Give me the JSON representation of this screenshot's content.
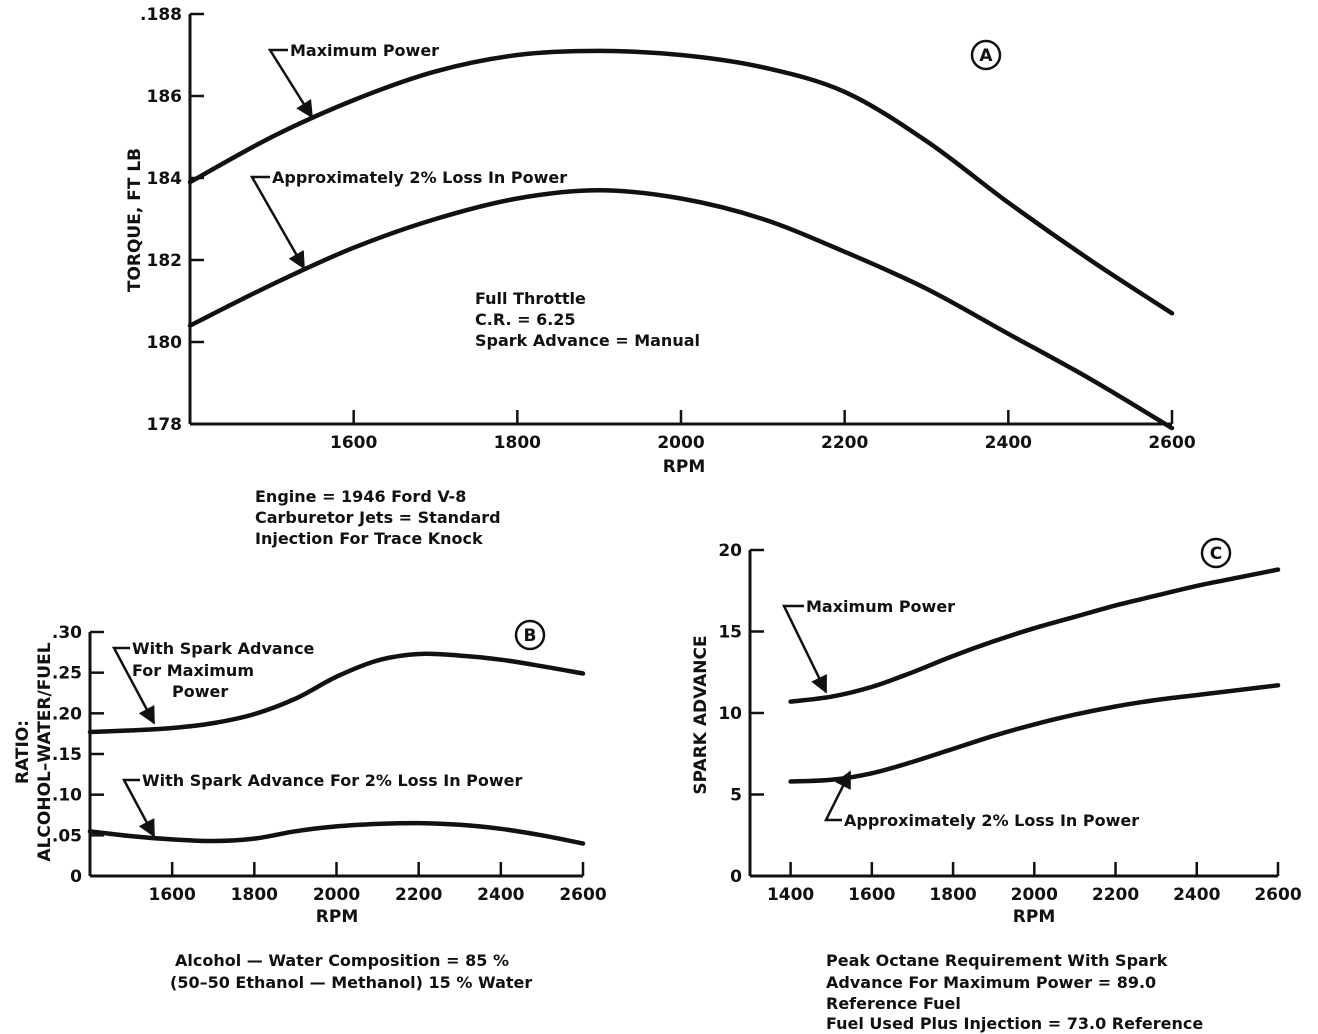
{
  "chart_data": [
    {
      "id": "A",
      "type": "line",
      "panel_label": "A",
      "title": "",
      "xlabel": "RPM",
      "ylabel": "TORQUE, FT LB",
      "xlim": [
        1400,
        2600
      ],
      "ylim": [
        178,
        188
      ],
      "x_ticks": [
        1600,
        1800,
        2000,
        2200,
        2400,
        2600
      ],
      "y_ticks": [
        178,
        180,
        182,
        184,
        186,
        188
      ],
      "x_tick_labels": [
        "1600",
        "1800",
        "2000",
        "2200",
        "2400",
        "2600"
      ],
      "y_tick_labels": [
        "178",
        "180",
        "182",
        "184",
        "186",
        ".188"
      ],
      "grid": false,
      "series": [
        {
          "name": "Maximum Power",
          "x": [
            1400,
            1500,
            1600,
            1700,
            1800,
            1900,
            2000,
            2100,
            2200,
            2300,
            2400,
            2500,
            2600
          ],
          "values": [
            183.9,
            185.0,
            185.9,
            186.6,
            187.0,
            187.1,
            187.0,
            186.7,
            186.1,
            184.9,
            183.4,
            182.0,
            180.7
          ]
        },
        {
          "name": "Approximately 2% Loss In Power",
          "x": [
            1400,
            1500,
            1600,
            1700,
            1800,
            1900,
            2000,
            2100,
            2200,
            2300,
            2400,
            2500,
            2600
          ],
          "values": [
            180.4,
            181.4,
            182.3,
            183.0,
            183.5,
            183.7,
            183.5,
            183.0,
            182.2,
            181.3,
            180.2,
            179.1,
            177.9
          ]
        }
      ],
      "annotations": [
        "Full Throttle",
        "C.R. = 6.25",
        "Spark Advance = Manual"
      ]
    },
    {
      "id": "B",
      "type": "line",
      "panel_label": "B",
      "title": "",
      "xlabel": "RPM",
      "ylabel": "RATIO: ALCOHOL-WATER/FUEL",
      "xlim": [
        1400,
        2600
      ],
      "ylim": [
        0,
        0.3
      ],
      "x_ticks": [
        1600,
        1800,
        2000,
        2200,
        2400,
        2600
      ],
      "y_ticks": [
        0,
        0.05,
        0.1,
        0.15,
        0.2,
        0.25,
        0.3
      ],
      "x_tick_labels": [
        "1600",
        "1800",
        "2000",
        "2200",
        "2400",
        "2600"
      ],
      "y_tick_labels": [
        "0",
        ".05",
        ".10",
        ".15",
        ".20",
        ".25",
        ".30"
      ],
      "grid": false,
      "series": [
        {
          "name": "With Spark Advance For Maximum Power",
          "x": [
            1400,
            1500,
            1600,
            1700,
            1800,
            1900,
            2000,
            2100,
            2200,
            2300,
            2400,
            2500,
            2600
          ],
          "values": [
            0.177,
            0.179,
            0.182,
            0.188,
            0.199,
            0.218,
            0.245,
            0.265,
            0.273,
            0.271,
            0.266,
            0.258,
            0.249
          ]
        },
        {
          "name": "With Spark Advance For 2% Loss In Power",
          "x": [
            1400,
            1500,
            1600,
            1700,
            1800,
            1900,
            2000,
            2100,
            2200,
            2300,
            2400,
            2500,
            2600
          ],
          "values": [
            0.055,
            0.049,
            0.045,
            0.043,
            0.046,
            0.055,
            0.061,
            0.064,
            0.065,
            0.063,
            0.058,
            0.05,
            0.04
          ]
        }
      ],
      "annotations": []
    },
    {
      "id": "C",
      "type": "line",
      "panel_label": "C",
      "title": "",
      "xlabel": "RPM",
      "ylabel": "SPARK ADVANCE",
      "xlim": [
        1300,
        2600
      ],
      "ylim": [
        0,
        20
      ],
      "x_ticks": [
        1400,
        1600,
        1800,
        2000,
        2200,
        2400,
        2600
      ],
      "y_ticks": [
        0,
        5,
        10,
        15,
        20
      ],
      "x_tick_labels": [
        "1400",
        "1600",
        "1800",
        "2000",
        "2200",
        "2400",
        "2600"
      ],
      "y_tick_labels": [
        "0",
        "5",
        "10",
        "15",
        "20"
      ],
      "grid": false,
      "series": [
        {
          "name": "Maximum Power",
          "x": [
            1400,
            1500,
            1600,
            1700,
            1800,
            1900,
            2000,
            2100,
            2200,
            2300,
            2400,
            2500,
            2600
          ],
          "values": [
            10.7,
            11.0,
            11.6,
            12.5,
            13.5,
            14.4,
            15.2,
            15.9,
            16.6,
            17.2,
            17.8,
            18.3,
            18.8
          ]
        },
        {
          "name": "Approximately 2% Loss In Power",
          "x": [
            1400,
            1500,
            1600,
            1700,
            1800,
            1900,
            2000,
            2100,
            2200,
            2300,
            2400,
            2500,
            2600
          ],
          "values": [
            5.8,
            5.9,
            6.3,
            7.0,
            7.8,
            8.6,
            9.3,
            9.9,
            10.4,
            10.8,
            11.1,
            11.4,
            11.7
          ]
        }
      ],
      "annotations": []
    }
  ],
  "captions": {
    "engine": [
      "Engine = 1946 Ford V-8",
      "Carburetor Jets = Standard",
      "Injection For Trace Knock"
    ],
    "composition": [
      "Alcohol — Water Composition = 85 %",
      "(50–50 Ethanol — Methanol) 15 % Water"
    ],
    "octane": [
      "Peak Octane Requirement With Spark",
      "Advance For Maximum Power = 89.0",
      "Reference Fuel",
      "Fuel Used Plus Injection = 73.0 Reference"
    ]
  },
  "labels": {
    "A_max": "Maximum Power",
    "A_loss": "Approximately 2% Loss In Power",
    "B_max": [
      "With Spark Advance",
      "For Maximum",
      "Power"
    ],
    "B_loss": "With Spark Advance For 2% Loss In Power",
    "C_max": "Maximum Power",
    "C_loss": "Approximately 2% Loss In Power",
    "B_ylabel_1": "RATIO:",
    "B_ylabel_2": "ALCOHOL–WATER/FUEL"
  }
}
